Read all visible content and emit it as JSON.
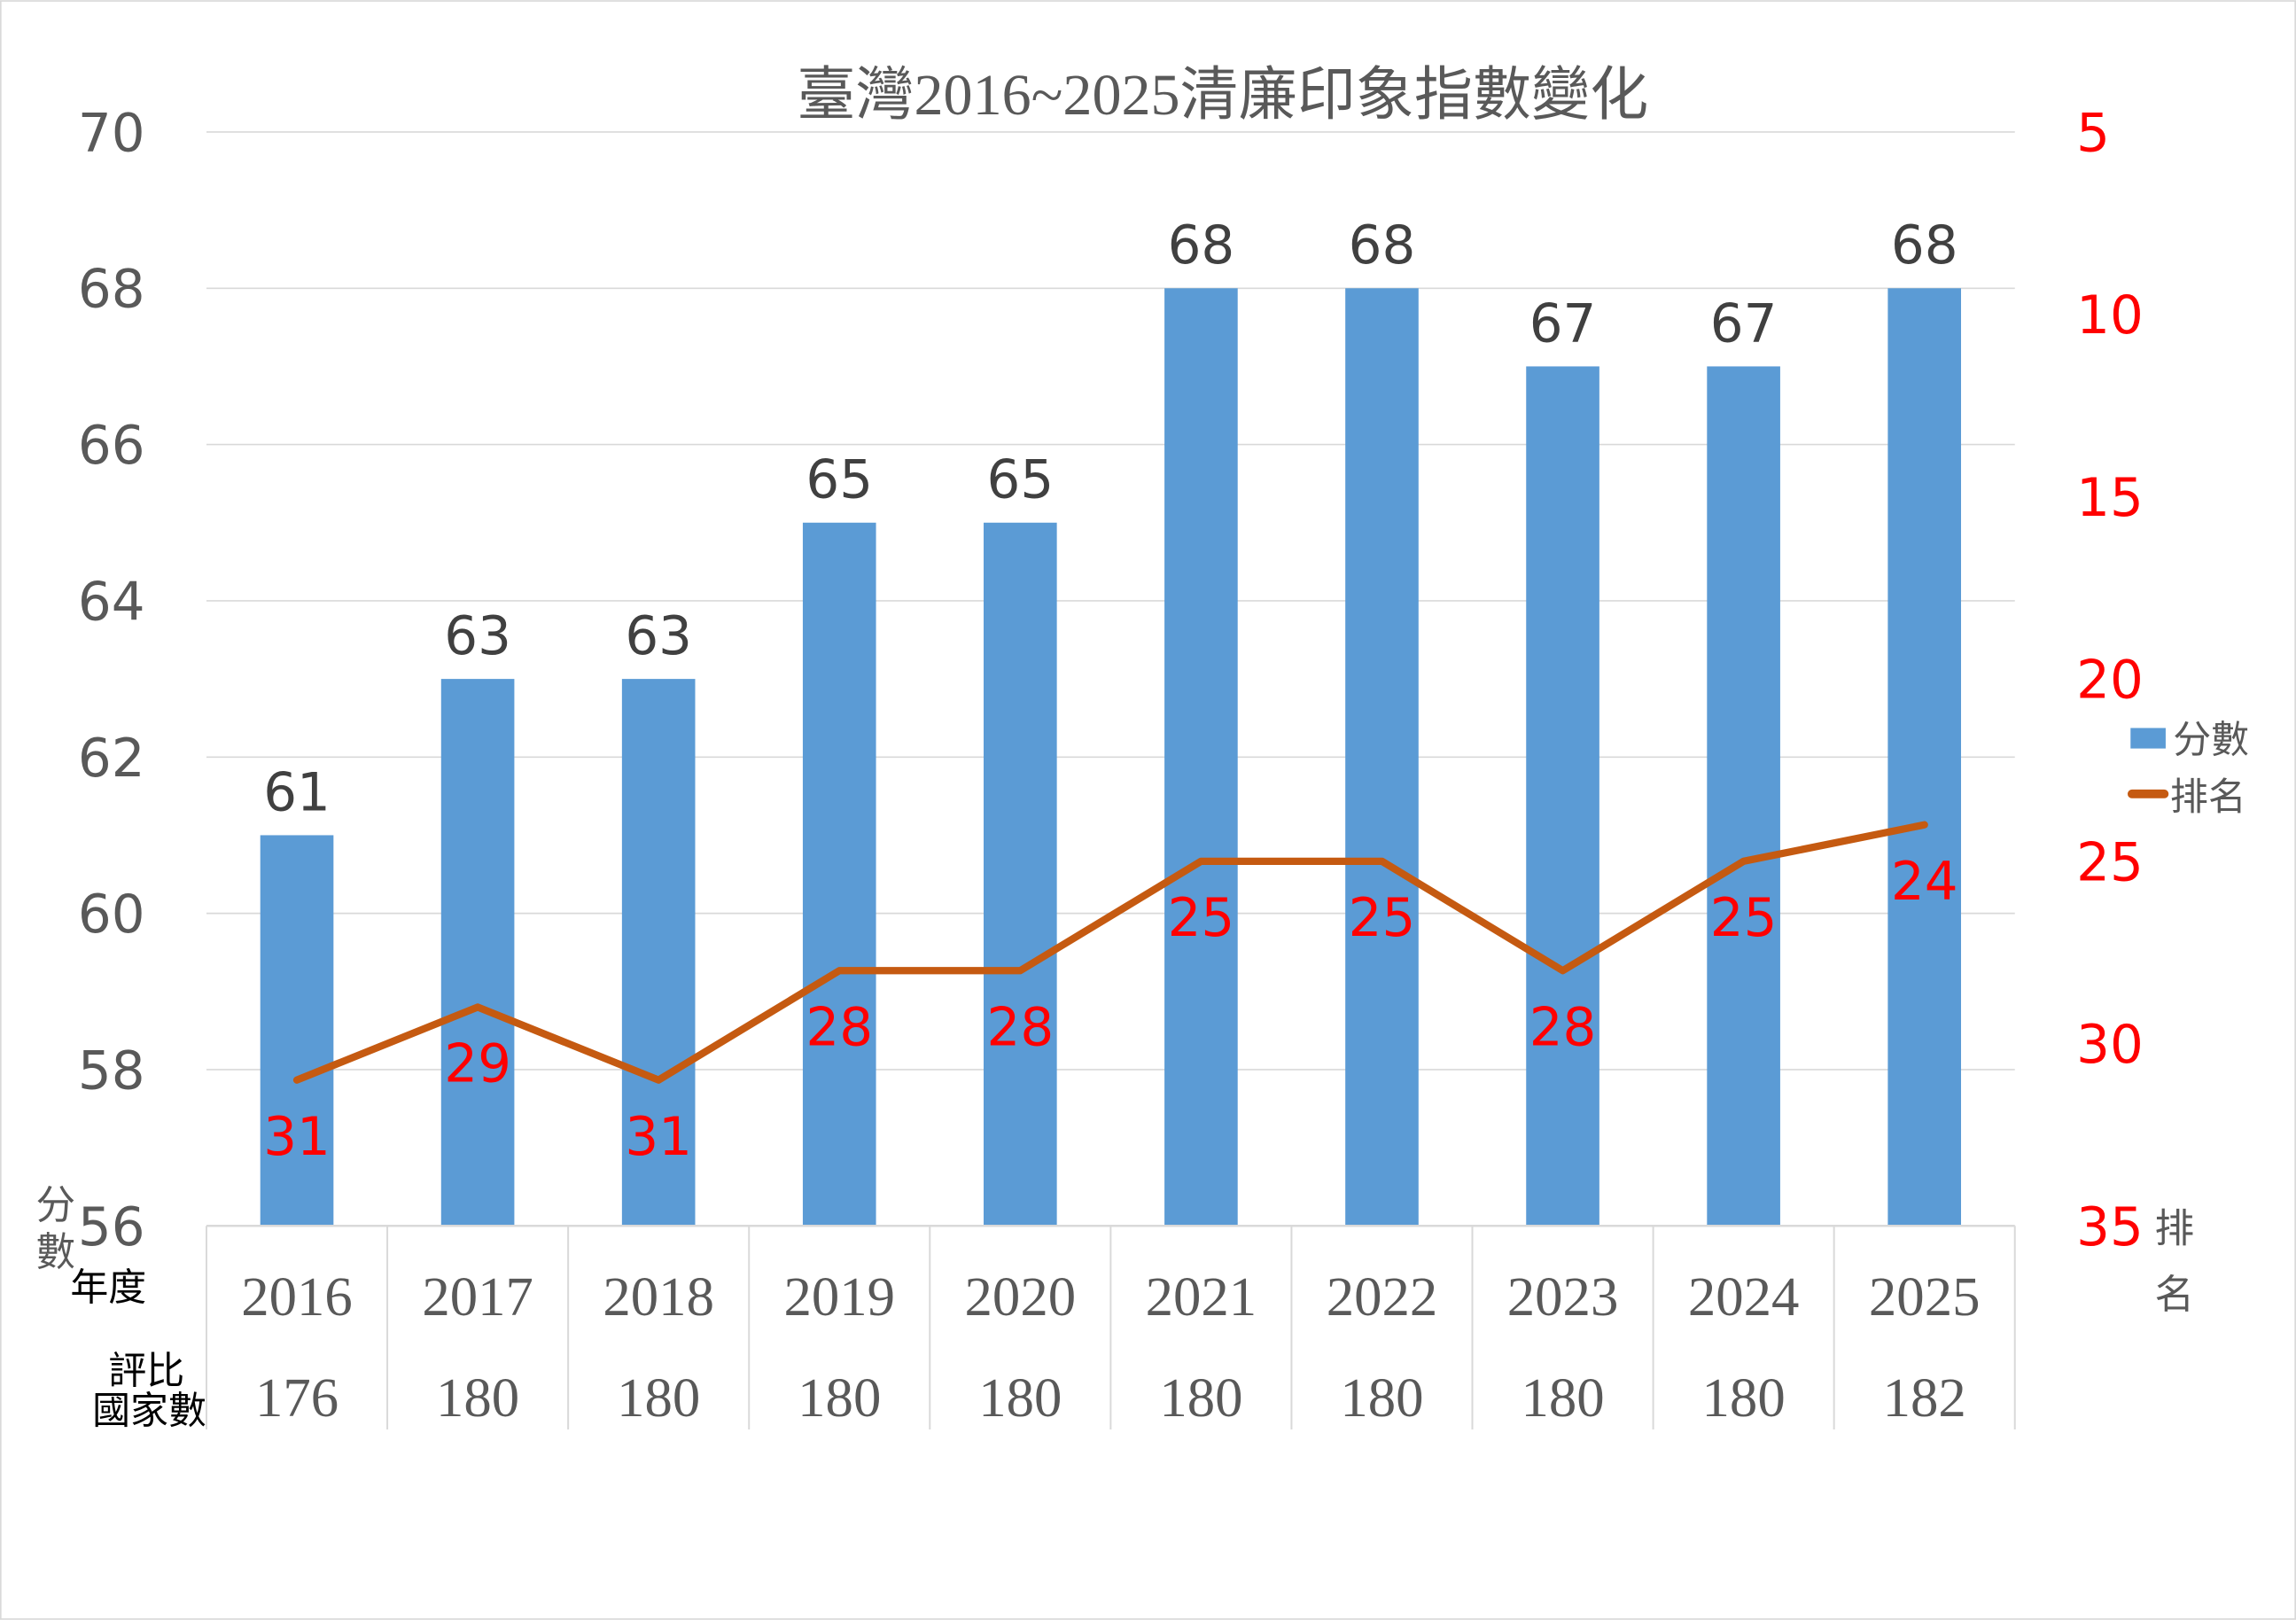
{
  "chart_data": {
    "type": "bar+line",
    "title": "臺灣2016~2025清廉印象指數變化",
    "categories": [
      "2016",
      "2017",
      "2018",
      "2019",
      "2020",
      "2021",
      "2022",
      "2023",
      "2024",
      "2025"
    ],
    "country_counts": [
      "176",
      "180",
      "180",
      "180",
      "180",
      "180",
      "180",
      "180",
      "180",
      "182"
    ],
    "table_row_labels": {
      "year": "年度",
      "count_line1": "評比",
      "count_line2": "國家數"
    },
    "series": [
      {
        "name": "分數",
        "type": "bar",
        "axis": "left",
        "color": "#5B9BD5",
        "values": [
          61,
          63,
          63,
          65,
          65,
          68,
          68,
          67,
          67,
          68
        ]
      },
      {
        "name": "排名",
        "type": "line",
        "axis": "right",
        "color": "#C55A11",
        "label_color": "#FF0000",
        "values": [
          31,
          29,
          31,
          28,
          28,
          25,
          25,
          28,
          25,
          24
        ]
      }
    ],
    "left_axis": {
      "label": "分數",
      "ylim": [
        56,
        70
      ],
      "ticks": [
        "56",
        "58",
        "60",
        "62",
        "64",
        "66",
        "68",
        "70"
      ]
    },
    "right_axis": {
      "label": "排名",
      "ylim": [
        5,
        35
      ],
      "reversed": true,
      "color": "#FF0000",
      "ticks": [
        "5",
        "10",
        "15",
        "20",
        "25",
        "30",
        "35"
      ]
    },
    "grid": true,
    "legend": "right"
  }
}
